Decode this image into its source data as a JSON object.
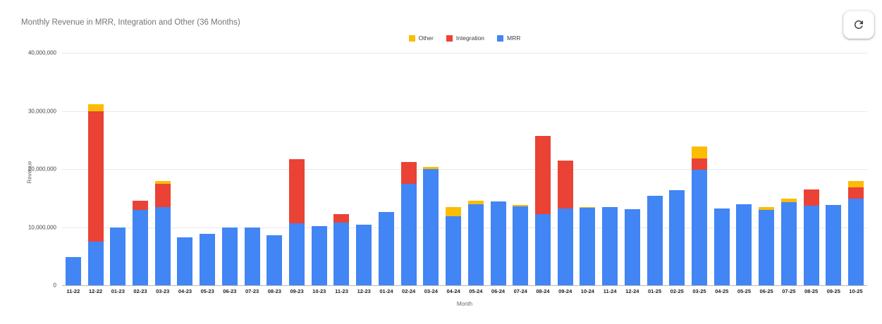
{
  "header": {
    "title": "Monthly Revenue in MRR, Integration and Other (36 Months)",
    "refresh_icon": "refresh-icon"
  },
  "colors": {
    "other": "#FBBC04",
    "integration": "#EA4335",
    "mrr": "#4285F4",
    "gridline": "#e8e8e8",
    "baseline": "#b7b7b7",
    "title_text": "#757575",
    "axis_text": "#444444",
    "icon": "#3c4043"
  },
  "chart_data": {
    "type": "bar",
    "stacked": true,
    "title": "Monthly Revenue in MRR, Integration and Other (36 Months)",
    "xlabel": "Month",
    "ylabel": "Revenue",
    "ylim": [
      0,
      40000000
    ],
    "grid": true,
    "legend_position": "top-center",
    "yticks": [
      "0",
      "10,000,000",
      "20,000,000",
      "30,000,000",
      "40,000,000"
    ],
    "categories": [
      "11-22",
      "12-22",
      "01-23",
      "02-23",
      "03-23",
      "04-23",
      "05-23",
      "06-23",
      "07-23",
      "08-23",
      "09-23",
      "10-23",
      "11-23",
      "12-23",
      "01-24",
      "02-24",
      "03-24",
      "04-24",
      "05-24",
      "06-24",
      "07-24",
      "08-24",
      "09-24",
      "10-24",
      "11-24",
      "12-24",
      "01-25",
      "02-25",
      "03-25",
      "04-25",
      "05-25",
      "06-25",
      "07-25",
      "08-25",
      "09-25",
      "10-25"
    ],
    "series": [
      {
        "name": "Other",
        "color": "#FBBC04",
        "values": [
          0,
          1100000,
          0,
          0,
          500000,
          0,
          0,
          0,
          0,
          0,
          0,
          0,
          0,
          0,
          0,
          0,
          400000,
          1500000,
          600000,
          0,
          200000,
          0,
          0,
          200000,
          0,
          0,
          0,
          0,
          2100000,
          0,
          0,
          500000,
          600000,
          0,
          0,
          1000000
        ]
      },
      {
        "name": "Integration",
        "color": "#EA4335",
        "values": [
          0,
          22500000,
          0,
          1600000,
          3900000,
          0,
          0,
          0,
          0,
          0,
          11000000,
          0,
          1500000,
          0,
          0,
          3800000,
          0,
          0,
          0,
          0,
          0,
          13400000,
          8300000,
          0,
          0,
          0,
          0,
          0,
          1900000,
          0,
          0,
          0,
          0,
          2800000,
          0,
          2000000
        ]
      },
      {
        "name": "MRR",
        "color": "#4285F4",
        "values": [
          4900000,
          7500000,
          9900000,
          13000000,
          13500000,
          8200000,
          8800000,
          9900000,
          9900000,
          8600000,
          10700000,
          10200000,
          10800000,
          10400000,
          12600000,
          17400000,
          20000000,
          11900000,
          14000000,
          14400000,
          13600000,
          12300000,
          13200000,
          13300000,
          13500000,
          13100000,
          15400000,
          16400000,
          19900000,
          13200000,
          14000000,
          13000000,
          14300000,
          13700000,
          13800000,
          14900000
        ]
      }
    ]
  }
}
